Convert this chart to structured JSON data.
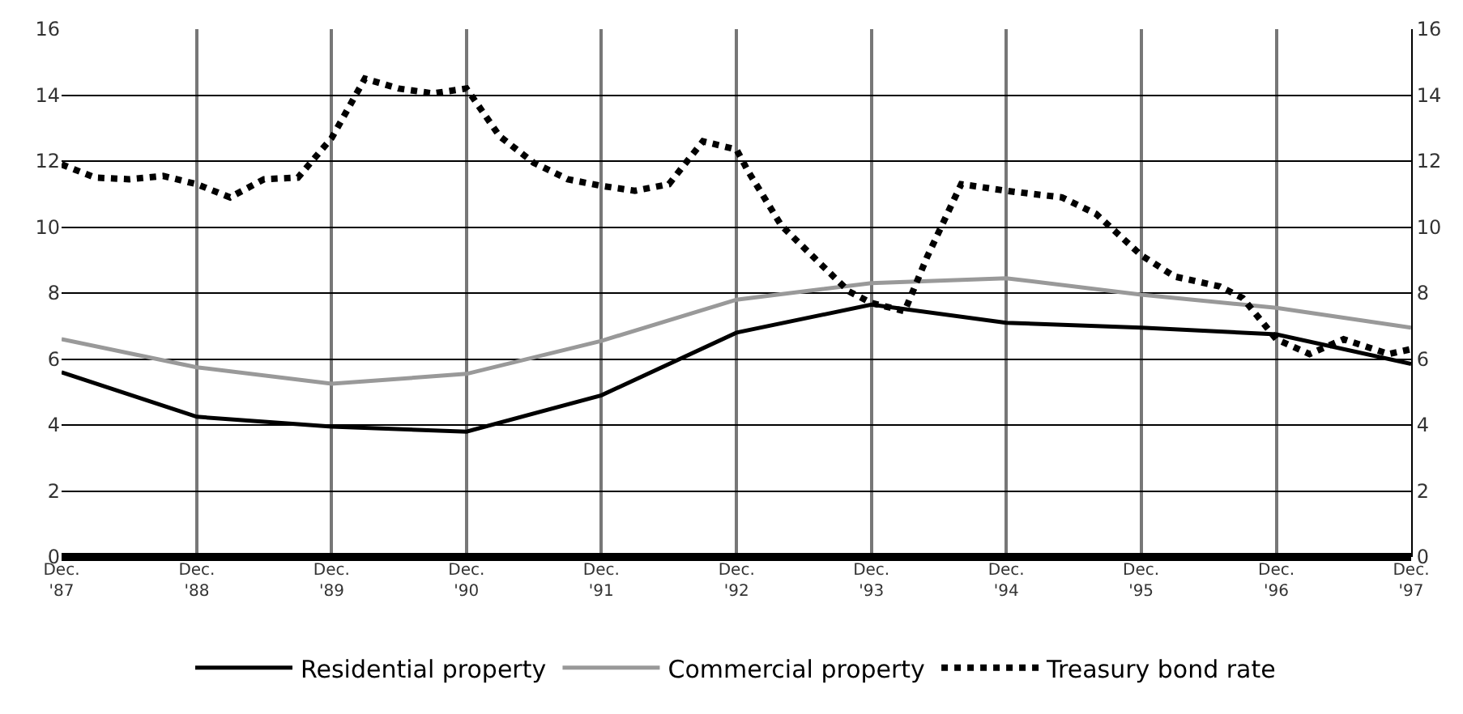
{
  "chart_data": {
    "type": "line",
    "x": [
      "1987-12",
      "1988-12",
      "1989-12",
      "1990-12",
      "1991-12",
      "1992-12",
      "1993-12",
      "1994-12",
      "1995-12",
      "1996-12",
      "1997-12"
    ],
    "series": [
      {
        "name": "Residential property",
        "color": "#000000",
        "line_style": "solid",
        "values": [
          5.6,
          4.25,
          3.95,
          3.8,
          4.9,
          6.8,
          7.65,
          7.1,
          6.95,
          6.75,
          5.85
        ]
      },
      {
        "name": "Commercial property",
        "color": "#999999",
        "line_style": "solid",
        "values": [
          6.6,
          5.75,
          5.25,
          5.55,
          6.55,
          7.8,
          8.3,
          8.45,
          7.95,
          7.55,
          6.95
        ]
      },
      {
        "name": "Treasury bond rate",
        "color": "#000000",
        "line_style": "dotted",
        "x": [
          "1987-12",
          "1988-03",
          "1988-06",
          "1988-09",
          "1988-12",
          "1989-03",
          "1989-06",
          "1989-09",
          "1989-12",
          "1990-03",
          "1990-06",
          "1990-09",
          "1990-12",
          "1991-03",
          "1991-06",
          "1991-09",
          "1991-12",
          "1992-03",
          "1992-06",
          "1992-09",
          "1992-12",
          "1993-01",
          "1993-04",
          "1993-07",
          "1993-10",
          "1993-12",
          "1994-03",
          "1994-05",
          "1994-08",
          "1994-12",
          "1995-05",
          "1995-08",
          "1995-12",
          "1996-03",
          "1996-07",
          "1996-09",
          "1996-12",
          "1997-03",
          "1997-06",
          "1997-10",
          "1997-12"
        ],
        "values": [
          11.9,
          11.5,
          11.45,
          11.55,
          11.3,
          10.9,
          11.45,
          11.5,
          12.7,
          14.5,
          14.2,
          14.05,
          14.2,
          12.75,
          11.95,
          11.45,
          11.25,
          11.1,
          11.3,
          12.6,
          12.35,
          11.7,
          10.05,
          9.05,
          8.05,
          7.7,
          7.45,
          9.1,
          11.3,
          11.1,
          10.9,
          10.4,
          9.15,
          8.5,
          8.2,
          7.85,
          6.6,
          6.15,
          6.6,
          6.15,
          6.3
        ]
      }
    ],
    "xlim": [
      "1987-12",
      "1997-12"
    ],
    "xticks": [
      {
        "value": "1987-12",
        "label": "Dec.\n'87"
      },
      {
        "value": "1988-12",
        "label": "Dec.\n'88"
      },
      {
        "value": "1989-12",
        "label": "Dec.\n'89"
      },
      {
        "value": "1990-12",
        "label": "Dec.\n'90"
      },
      {
        "value": "1991-12",
        "label": "Dec.\n'91"
      },
      {
        "value": "1992-12",
        "label": "Dec.\n'92"
      },
      {
        "value": "1993-12",
        "label": "Dec.\n'93"
      },
      {
        "value": "1994-12",
        "label": "Dec.\n'94"
      },
      {
        "value": "1995-12",
        "label": "Dec.\n'95"
      },
      {
        "value": "1996-12",
        "label": "Dec.\n'96"
      },
      {
        "value": "1997-12",
        "label": "Dec.\n'97"
      }
    ],
    "ylim": [
      0,
      16
    ],
    "yticks": [
      0,
      2,
      4,
      6,
      8,
      10,
      12,
      14,
      16
    ],
    "y2lim": [
      0,
      16
    ],
    "y2ticks": [
      0,
      2,
      4,
      6,
      8,
      10,
      12,
      14,
      16
    ],
    "grid": true,
    "legend": "bottom",
    "marker": "none"
  }
}
